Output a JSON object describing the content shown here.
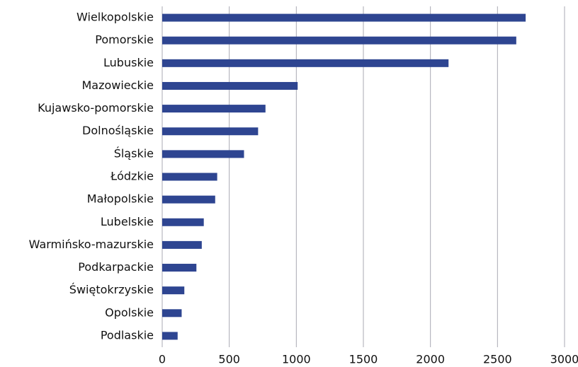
{
  "chart_data": {
    "type": "bar",
    "orientation": "horizontal",
    "categories": [
      "Wielkopolskie",
      "Pomorskie",
      "Lubuskie",
      "Mazowieckie",
      "Kujawsko-pomorskie",
      "Dolnośląskie",
      "Śląskie",
      "Łódzkie",
      "Małopolskie",
      "Lubelskie",
      "Warmińsko-mazurskie",
      "Podkarpackie",
      "Świętokrzyskie",
      "Opolskie",
      "Podlaskie"
    ],
    "values": [
      2710,
      2640,
      2135,
      1010,
      770,
      715,
      610,
      410,
      395,
      310,
      295,
      255,
      165,
      145,
      115
    ],
    "color": "#2e4591",
    "xlim": [
      0,
      3000
    ],
    "xticks": [
      0,
      500,
      1000,
      1500,
      2000,
      2500,
      3000
    ],
    "grid": true
  }
}
